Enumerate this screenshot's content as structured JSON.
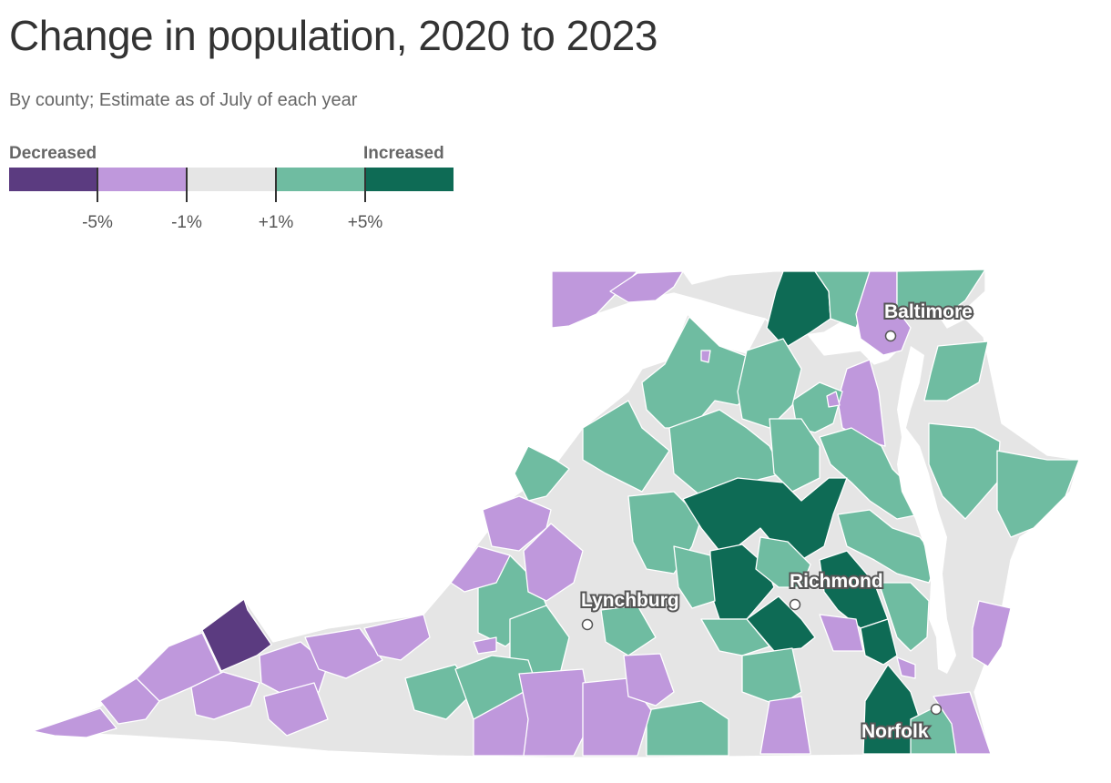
{
  "title": "Change in population, 2020 to 2023",
  "subtitle": "By county; Estimate as of July of each year",
  "legend": {
    "left_label": "Decreased",
    "right_label": "Increased",
    "colors": [
      "#5b3b80",
      "#bf98dc",
      "#e5e5e5",
      "#6fbca1",
      "#0e6b55"
    ],
    "ticks": [
      "-5%",
      "-1%",
      "+1%",
      "+5%"
    ]
  },
  "colors": {
    "strong_decrease": "#5b3b80",
    "decrease": "#bf98dc",
    "neutral": "#e5e5e5",
    "increase": "#6fbca1",
    "strong_increase": "#0e6b55",
    "water": "#ffffff",
    "border": "#ffffff"
  },
  "cities": [
    {
      "name": "Baltimore"
    },
    {
      "name": "Lynchburg"
    },
    {
      "name": "Richmond"
    },
    {
      "name": "Norfolk"
    }
  ]
}
